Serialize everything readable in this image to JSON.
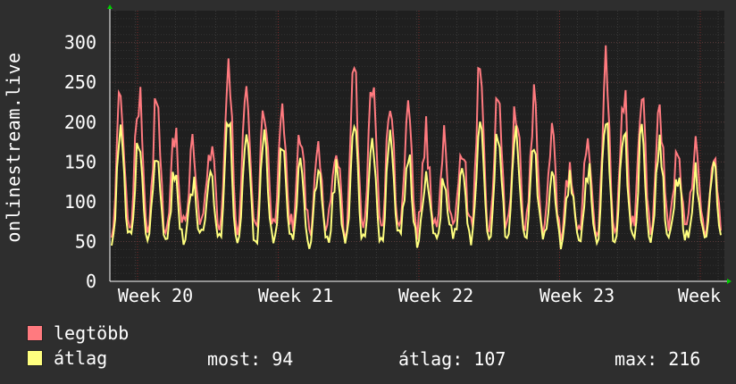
{
  "chart_data": {
    "type": "line",
    "ylabel": "onlinestream.live",
    "xlabel": "",
    "ylim": [
      0,
      340
    ],
    "y_ticks": [
      "0",
      "50",
      "100",
      "150",
      "200",
      "250",
      "300"
    ],
    "x_ticks": [
      "Week 20",
      "Week 21",
      "Week 22",
      "Week 23",
      "Week"
    ],
    "grid": true,
    "series_shape": {
      "days": 34,
      "weekly_daily_peaks_max": [
        240,
        230,
        220,
        180,
        160,
        175,
        265
      ],
      "weekly_daily_peaks_avg": [
        190,
        185,
        170,
        140,
        130,
        140,
        205
      ],
      "daily_min_max": 60,
      "daily_min_avg": 50
    },
    "series": [
      {
        "name": "legtöbb",
        "color": "#ff7a7f"
      },
      {
        "name": "átlag",
        "color": "#ffff7f"
      }
    ]
  },
  "legend": {
    "max_label": "legtöbb",
    "avg_label": "átlag"
  },
  "stats": {
    "now": "most: 94",
    "avg": "átlag: 107",
    "max": "max: 216"
  }
}
